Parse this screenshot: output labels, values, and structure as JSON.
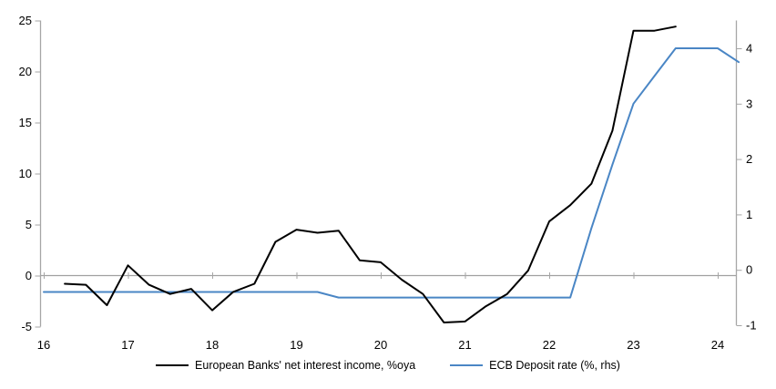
{
  "chart_data": {
    "type": "line",
    "title": "",
    "x_axis": {
      "ticks": [
        16,
        17,
        18,
        19,
        20,
        21,
        22,
        23,
        24
      ],
      "range": [
        16,
        24.25
      ]
    },
    "left_axis": {
      "ticks": [
        25,
        20,
        15,
        10,
        5,
        0,
        -5
      ],
      "range": [
        -5,
        25
      ]
    },
    "right_axis": {
      "ticks": [
        4,
        3,
        2,
        1,
        0,
        -1
      ],
      "range": [
        -1.1,
        4.5
      ]
    },
    "grid": "zero-line-only",
    "legend_position": "bottom",
    "series": [
      {
        "name": "European Banks' net interest income, %oya",
        "color": "#000000",
        "axis": "left",
        "x": [
          16.25,
          16.5,
          16.75,
          17.0,
          17.25,
          17.5,
          17.75,
          18.0,
          18.25,
          18.5,
          18.75,
          19.0,
          19.25,
          19.5,
          19.75,
          20.0,
          20.25,
          20.5,
          20.75,
          21.0,
          21.25,
          21.5,
          21.75,
          22.0,
          22.25,
          22.5,
          22.75,
          23.0,
          23.25,
          23.5
        ],
        "values": [
          -0.8,
          -0.9,
          -2.9,
          1.0,
          -0.9,
          -1.8,
          -1.3,
          -3.4,
          -1.6,
          -0.8,
          3.3,
          4.5,
          4.2,
          4.4,
          1.5,
          1.3,
          -0.4,
          -1.8,
          -4.6,
          -4.5,
          -3.0,
          -1.8,
          0.5,
          5.3,
          6.9,
          9.0,
          14.2,
          24.0,
          24.0,
          24.4
        ]
      },
      {
        "name": "ECB Deposit rate (%, rhs)",
        "color": "#4a86c5",
        "axis": "right",
        "x": [
          16.0,
          16.25,
          16.5,
          16.75,
          17.0,
          17.25,
          17.5,
          17.75,
          18.0,
          18.25,
          18.5,
          18.75,
          19.0,
          19.25,
          19.5,
          19.75,
          20.0,
          20.25,
          20.5,
          20.75,
          21.0,
          21.25,
          21.5,
          21.75,
          22.0,
          22.25,
          22.5,
          22.75,
          23.0,
          23.25,
          23.5,
          23.75,
          24.0,
          24.25
        ],
        "values": [
          -0.4,
          -0.4,
          -0.4,
          -0.4,
          -0.4,
          -0.4,
          -0.4,
          -0.4,
          -0.4,
          -0.4,
          -0.4,
          -0.4,
          -0.4,
          -0.4,
          -0.5,
          -0.5,
          -0.5,
          -0.5,
          -0.5,
          -0.5,
          -0.5,
          -0.5,
          -0.5,
          -0.5,
          -0.5,
          -0.5,
          0.75,
          1.9,
          3.0,
          3.5,
          4.0,
          4.0,
          4.0,
          3.75
        ]
      }
    ]
  },
  "colors": {
    "axis": "#a6a6a6",
    "zero_line": "#a0a0a0",
    "text": "#000000",
    "background": "#ffffff"
  }
}
